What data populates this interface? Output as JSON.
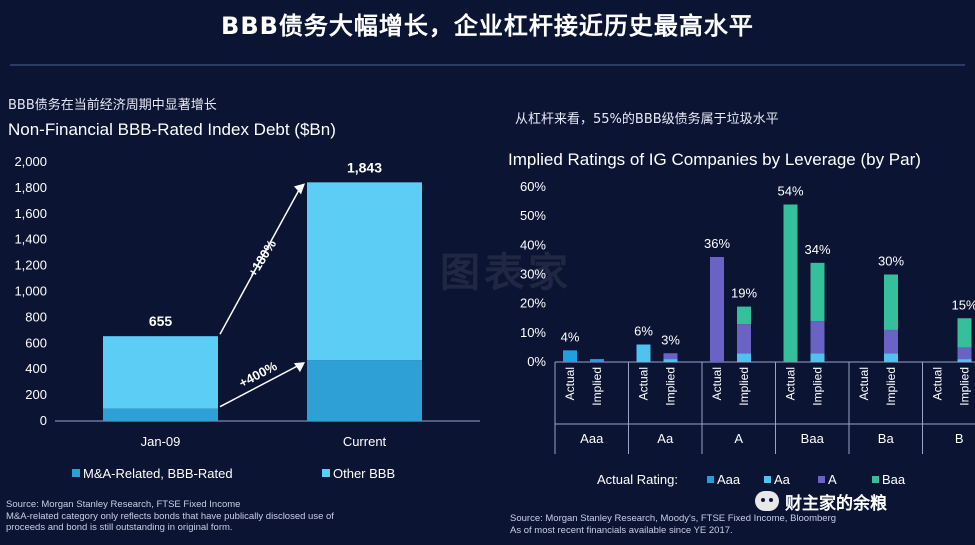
{
  "page": {
    "title": "BBB债务大幅增长，企业杠杆接近历史最高水平",
    "watermark": "图表家",
    "wechat_account": "财主家的余粮"
  },
  "left_panel": {
    "subtitle": "BBB债务在当前经济周期中显著增长",
    "title": "Non-Financial BBB-Rated Index Debt ($Bn)",
    "source_line1": "Source: Morgan Stanley Research, FTSE Fixed Income",
    "source_line2": "M&A-related category only reflects bonds that have publically disclosed use of",
    "source_line3": "proceeds and bond is still outstanding in original form.",
    "growth_total": "+180%",
    "growth_ma": "+400%"
  },
  "right_panel": {
    "subtitle": "从杠杆来看，55%的BBB级债务属于垃圾水平",
    "title": "Implied Ratings of IG Companies by Leverage (by Par)",
    "legend_prefix": "Actual Rating:",
    "source_line1": "Source: Morgan Stanley Research, Moody's, FTSE Fixed Income, Bloomberg",
    "source_line2": "As of most recent financials available since YE 2017."
  },
  "colors": {
    "background": "#0b1433",
    "other_bbb": "#5ccdf5",
    "ma_related": "#2fa0d6",
    "aaa": "#1fa2dc",
    "aa": "#4fc3ee",
    "a": "#6b62c6",
    "baa": "#33c09a"
  },
  "chart_data": [
    {
      "type": "bar",
      "stacked": true,
      "categories": [
        "Jan-09",
        "Current"
      ],
      "series": [
        {
          "name": "M&A-Related, BBB-Rated",
          "values": [
            95,
            470
          ]
        },
        {
          "name": "Other BBB",
          "values": [
            560,
            1373
          ]
        }
      ],
      "totals": [
        "655",
        "1,843"
      ],
      "ylim": [
        0,
        2000
      ],
      "yticks": [
        "0",
        "200",
        "400",
        "600",
        "800",
        "1,000",
        "1,200",
        "1,400",
        "1,600",
        "1,800",
        "2,000"
      ],
      "legend": "bottom",
      "grid": false
    },
    {
      "type": "bar",
      "stacked": true,
      "groups": [
        "Aaa",
        "Aa",
        "A",
        "Baa",
        "Ba",
        "B"
      ],
      "bar_labels": [
        "Actual",
        "Implied"
      ],
      "series": [
        {
          "name": "Aaa",
          "values": [
            [
              4,
              1
            ],
            [
              0,
              0
            ],
            [
              0,
              0
            ],
            [
              0,
              0
            ],
            [
              0,
              0
            ],
            [
              0,
              0
            ]
          ]
        },
        {
          "name": "Aa",
          "values": [
            [
              0,
              0
            ],
            [
              6,
              1
            ],
            [
              0,
              3
            ],
            [
              0,
              3
            ],
            [
              0,
              3
            ],
            [
              0,
              1
            ]
          ]
        },
        {
          "name": "A",
          "values": [
            [
              0,
              0
            ],
            [
              0,
              2
            ],
            [
              36,
              10
            ],
            [
              0,
              11
            ],
            [
              0,
              8
            ],
            [
              0,
              4
            ]
          ]
        },
        {
          "name": "Baa",
          "values": [
            [
              0,
              0
            ],
            [
              0,
              0
            ],
            [
              0,
              6
            ],
            [
              54,
              20
            ],
            [
              0,
              19
            ],
            [
              0,
              10
            ]
          ]
        }
      ],
      "totals": [
        [
          "4%",
          ""
        ],
        [
          "6%",
          "3%"
        ],
        [
          "36%",
          "19%"
        ],
        [
          "54%",
          "34%"
        ],
        [
          "",
          "30%"
        ],
        [
          "",
          "15%"
        ]
      ],
      "ylim": [
        0,
        60
      ],
      "yticks": [
        "0%",
        "10%",
        "20%",
        "30%",
        "40%",
        "50%",
        "60%"
      ],
      "legend": "bottom",
      "grid": false
    }
  ]
}
